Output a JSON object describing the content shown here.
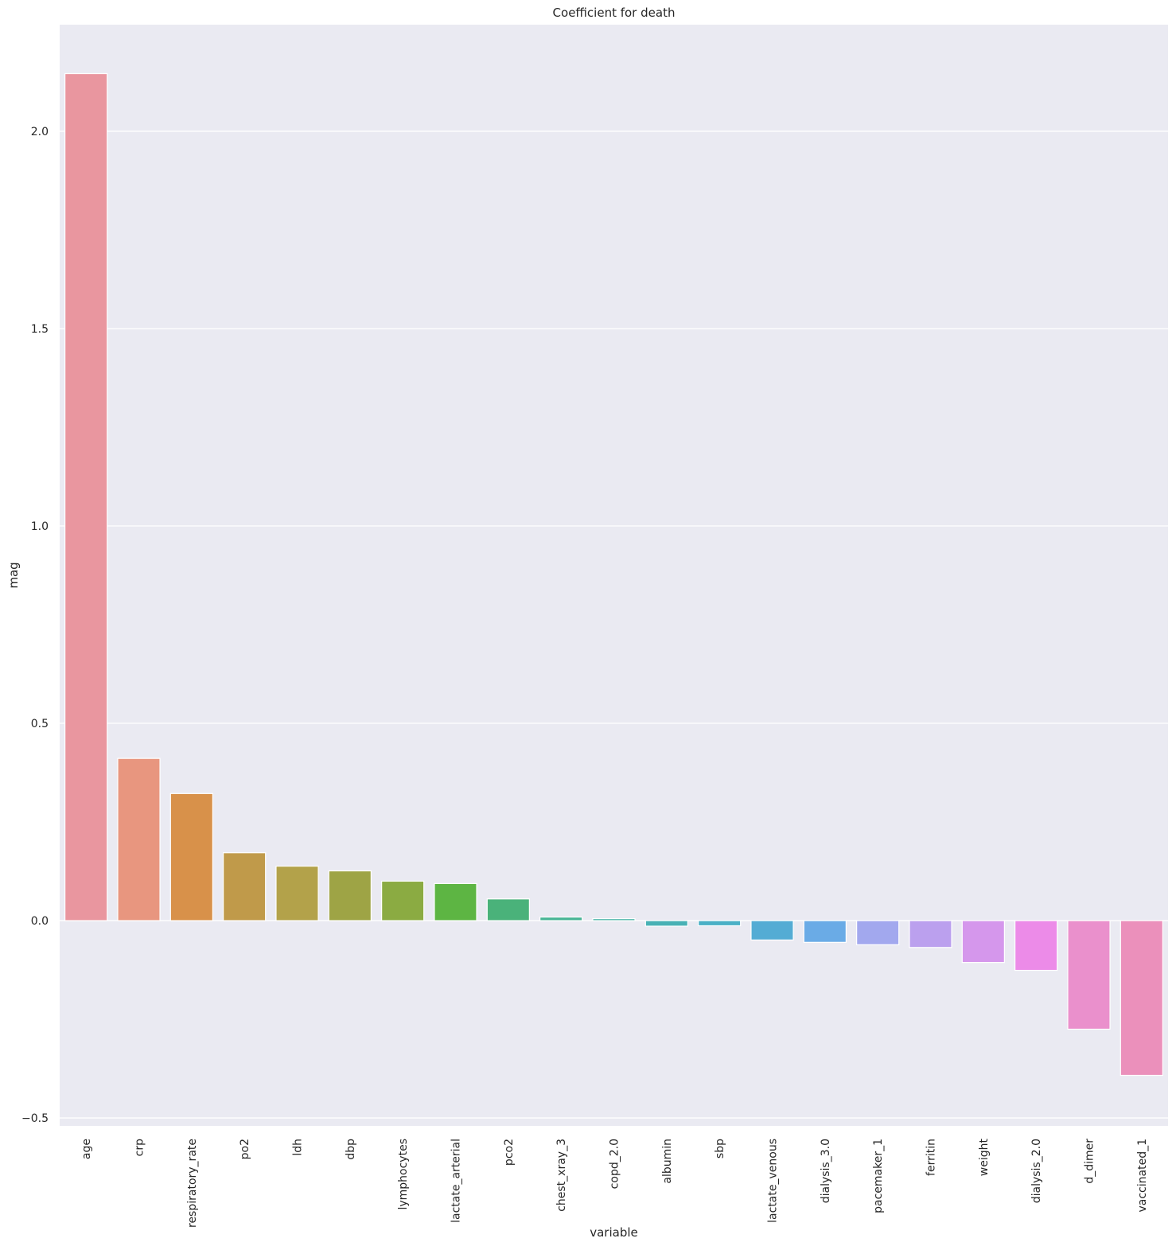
{
  "chart_data": {
    "type": "bar",
    "title": "Coefficient for death",
    "xlabel": "variable",
    "ylabel": "mag",
    "ylim": [
      -0.52,
      2.27
    ],
    "yticks": [
      -0.5,
      0.0,
      0.5,
      1.0,
      1.5,
      2.0
    ],
    "ytick_labels": [
      "−0.5",
      "0.0",
      "0.5",
      "1.0",
      "1.5",
      "2.0"
    ],
    "grid": true,
    "background_color": "#eaeaf2",
    "categories": [
      "age",
      "crp",
      "respiratory_rate",
      "po2",
      "ldh",
      "dbp",
      "lymphocytes",
      "lactate_arterial",
      "pco2",
      "chest_xray_3",
      "copd_2.0",
      "albumin",
      "sbp",
      "lactate_venous",
      "dialysis_3.0",
      "pacemaker_1",
      "ferritin",
      "weight",
      "dialysis_2.0",
      "d_dimer",
      "vaccinated_1"
    ],
    "values": [
      2.146,
      0.411,
      0.322,
      0.172,
      0.138,
      0.126,
      0.1,
      0.094,
      0.055,
      0.009,
      0.005,
      -0.014,
      -0.013,
      -0.049,
      -0.055,
      -0.061,
      -0.068,
      -0.106,
      -0.126,
      -0.275,
      -0.392
    ],
    "colors": [
      "#e9969f",
      "#e8967f",
      "#d8914a",
      "#c09a4a",
      "#b3a24a",
      "#9ea445",
      "#8bab42",
      "#5db543",
      "#4ab27a",
      "#48b495",
      "#47b4a6",
      "#48b1b5",
      "#4ab0c6",
      "#54acd4",
      "#6aabe6",
      "#a2a8ee",
      "#bba0ee",
      "#d597ec",
      "#ec8be8",
      "#ea90cc",
      "#eb90bb"
    ]
  }
}
